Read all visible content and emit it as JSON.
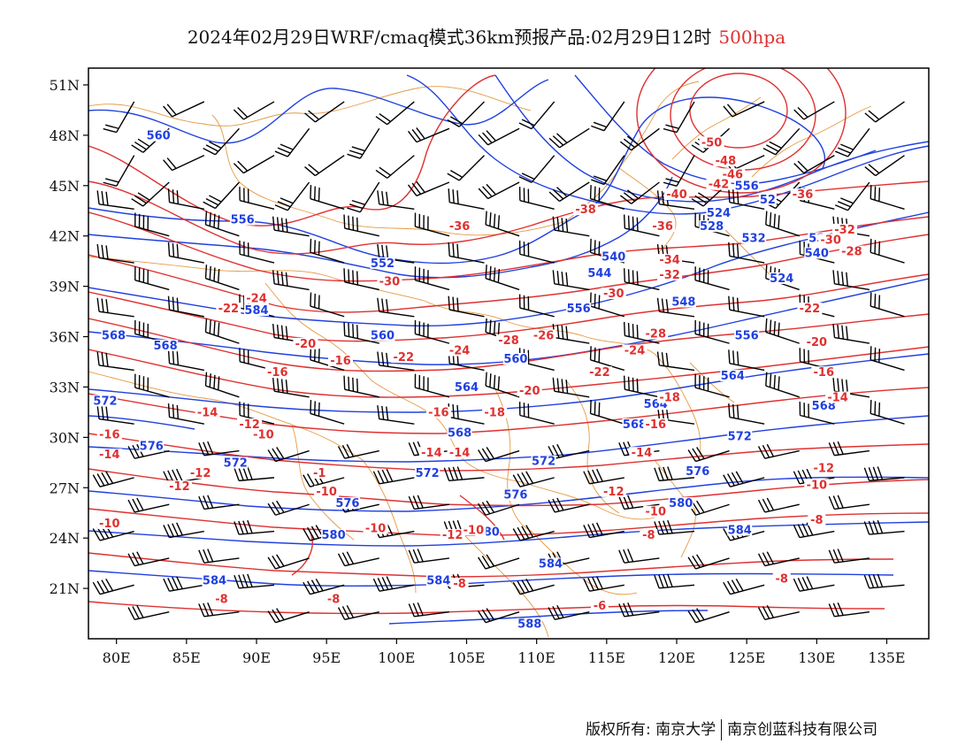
{
  "header": {
    "title": "2024年02月29日WRF/cmaq模式36km预报产品:02月29日12时",
    "level": "500hpa"
  },
  "map": {
    "lon_range": [
      78,
      138
    ],
    "lat_range": [
      18,
      52
    ],
    "lat_ticks": [
      "51N",
      "48N",
      "45N",
      "42N",
      "39N",
      "36N",
      "33N",
      "30N",
      "27N",
      "24N",
      "21N"
    ],
    "lon_ticks": [
      "80E",
      "85E",
      "90E",
      "95E",
      "100E",
      "105E",
      "110E",
      "115E",
      "120E",
      "125E",
      "130E",
      "135E"
    ],
    "geopotential_color": "#2040e0",
    "temperature_color": "#e03030",
    "boundary_color": "#e08820",
    "geopotential_labels": [
      {
        "text": "560",
        "lon": 83,
        "lat": 47.8
      },
      {
        "text": "556",
        "lon": 89,
        "lat": 42.8
      },
      {
        "text": "552",
        "lon": 99,
        "lat": 40.2
      },
      {
        "text": "556",
        "lon": 125,
        "lat": 44.8
      },
      {
        "text": "52",
        "lon": 126.5,
        "lat": 44.0
      },
      {
        "text": "524",
        "lon": 123,
        "lat": 43.2
      },
      {
        "text": "528",
        "lon": 122.5,
        "lat": 42.4
      },
      {
        "text": "532",
        "lon": 125.5,
        "lat": 41.7
      },
      {
        "text": "53",
        "lon": 130,
        "lat": 41.7
      },
      {
        "text": "540",
        "lon": 115.5,
        "lat": 40.6
      },
      {
        "text": "540",
        "lon": 130,
        "lat": 40.8
      },
      {
        "text": "544",
        "lon": 114.5,
        "lat": 39.6
      },
      {
        "text": "524",
        "lon": 127.5,
        "lat": 39.3
      },
      {
        "text": "548",
        "lon": 120.5,
        "lat": 37.9
      },
      {
        "text": "556",
        "lon": 113,
        "lat": 37.5
      },
      {
        "text": "560",
        "lon": 99,
        "lat": 35.9
      },
      {
        "text": "568",
        "lon": 79.8,
        "lat": 35.9
      },
      {
        "text": "568",
        "lon": 83.5,
        "lat": 35.3
      },
      {
        "text": "556",
        "lon": 125,
        "lat": 35.9
      },
      {
        "text": "560",
        "lon": 108.5,
        "lat": 34.5
      },
      {
        "text": "564",
        "lon": 124,
        "lat": 33.5
      },
      {
        "text": "564",
        "lon": 105,
        "lat": 32.8
      },
      {
        "text": "564",
        "lon": 118.5,
        "lat": 31.8
      },
      {
        "text": "568",
        "lon": 130.5,
        "lat": 31.7
      },
      {
        "text": "572",
        "lon": 79.2,
        "lat": 32.0
      },
      {
        "text": "568",
        "lon": 104.5,
        "lat": 30.1
      },
      {
        "text": "568",
        "lon": 117,
        "lat": 30.6
      },
      {
        "text": "572",
        "lon": 124.5,
        "lat": 29.9
      },
      {
        "text": "576",
        "lon": 82.5,
        "lat": 29.3
      },
      {
        "text": "572",
        "lon": 88.5,
        "lat": 28.3
      },
      {
        "text": "572",
        "lon": 110.5,
        "lat": 28.4
      },
      {
        "text": "576",
        "lon": 121.5,
        "lat": 27.8
      },
      {
        "text": "572",
        "lon": 102.2,
        "lat": 27.7
      },
      {
        "text": "576",
        "lon": 96.5,
        "lat": 25.9
      },
      {
        "text": "576",
        "lon": 108.5,
        "lat": 26.4
      },
      {
        "text": "580",
        "lon": 120.3,
        "lat": 25.9
      },
      {
        "text": "580",
        "lon": 95.5,
        "lat": 24.0
      },
      {
        "text": "584",
        "lon": 124.5,
        "lat": 24.3
      },
      {
        "text": "580",
        "lon": 106.5,
        "lat": 24.2
      },
      {
        "text": "584",
        "lon": 111,
        "lat": 22.3
      },
      {
        "text": "584",
        "lon": 87,
        "lat": 21.3
      },
      {
        "text": "584",
        "lon": 103,
        "lat": 21.3
      },
      {
        "text": "588",
        "lon": 109.5,
        "lat": 18.7
      },
      {
        "text": "584",
        "lon": 90,
        "lat": 37.4
      }
    ],
    "temperature_labels": [
      {
        "text": "-50",
        "lon": 122.5,
        "lat": 47.4
      },
      {
        "text": "-48",
        "lon": 123.5,
        "lat": 46.3
      },
      {
        "text": "-46",
        "lon": 124,
        "lat": 45.5
      },
      {
        "text": "-42",
        "lon": 123,
        "lat": 44.9
      },
      {
        "text": "-36",
        "lon": 129,
        "lat": 44.3
      },
      {
        "text": "-40",
        "lon": 120,
        "lat": 44.3
      },
      {
        "text": "-38",
        "lon": 113.5,
        "lat": 43.4
      },
      {
        "text": "-36",
        "lon": 104.5,
        "lat": 42.4
      },
      {
        "text": "-36",
        "lon": 119,
        "lat": 42.4
      },
      {
        "text": "-32",
        "lon": 132,
        "lat": 42.2
      },
      {
        "text": "-30",
        "lon": 131,
        "lat": 41.6
      },
      {
        "text": "-28",
        "lon": 132.5,
        "lat": 40.9
      },
      {
        "text": "-34",
        "lon": 119.5,
        "lat": 40.4
      },
      {
        "text": "-32",
        "lon": 119.5,
        "lat": 39.5
      },
      {
        "text": "-30",
        "lon": 99.5,
        "lat": 39.1
      },
      {
        "text": "-30",
        "lon": 115.5,
        "lat": 38.4
      },
      {
        "text": "-24",
        "lon": 90,
        "lat": 38.1
      },
      {
        "text": "-22",
        "lon": 88,
        "lat": 37.5
      },
      {
        "text": "-22",
        "lon": 129.5,
        "lat": 37.5
      },
      {
        "text": "-28",
        "lon": 108,
        "lat": 35.6
      },
      {
        "text": "-26",
        "lon": 110.5,
        "lat": 35.9
      },
      {
        "text": "-28",
        "lon": 118.5,
        "lat": 36.0
      },
      {
        "text": "-20",
        "lon": 93.5,
        "lat": 35.4
      },
      {
        "text": "-24",
        "lon": 104.5,
        "lat": 35.0
      },
      {
        "text": "-24",
        "lon": 117,
        "lat": 35.0
      },
      {
        "text": "-20",
        "lon": 130,
        "lat": 35.5
      },
      {
        "text": "-22",
        "lon": 100.5,
        "lat": 34.6
      },
      {
        "text": "-16",
        "lon": 96,
        "lat": 34.4
      },
      {
        "text": "-16",
        "lon": 91.5,
        "lat": 33.7
      },
      {
        "text": "-22",
        "lon": 114.5,
        "lat": 33.7
      },
      {
        "text": "-16",
        "lon": 130.5,
        "lat": 33.7
      },
      {
        "text": "-20",
        "lon": 109.5,
        "lat": 32.6
      },
      {
        "text": "-18",
        "lon": 119.5,
        "lat": 32.2
      },
      {
        "text": "-14",
        "lon": 131.5,
        "lat": 32.2
      },
      {
        "text": "-14",
        "lon": 86.5,
        "lat": 31.3
      },
      {
        "text": "-16",
        "lon": 103,
        "lat": 31.3
      },
      {
        "text": "-18",
        "lon": 107,
        "lat": 31.3
      },
      {
        "text": "-12",
        "lon": 89.5,
        "lat": 30.6
      },
      {
        "text": "-16",
        "lon": 118.5,
        "lat": 30.6
      },
      {
        "text": "-10",
        "lon": 90.5,
        "lat": 30.0
      },
      {
        "text": "-16",
        "lon": 79.5,
        "lat": 30.0
      },
      {
        "text": "-14",
        "lon": 79.5,
        "lat": 28.8
      },
      {
        "text": "-14",
        "lon": 102.5,
        "lat": 28.9
      },
      {
        "text": "-14",
        "lon": 104.5,
        "lat": 28.9
      },
      {
        "text": "-14",
        "lon": 117.5,
        "lat": 28.9
      },
      {
        "text": "-12",
        "lon": 130.5,
        "lat": 28.0
      },
      {
        "text": "-12",
        "lon": 86,
        "lat": 27.7
      },
      {
        "text": "-12",
        "lon": 84.5,
        "lat": 26.9
      },
      {
        "text": "-1",
        "lon": 94.5,
        "lat": 27.7
      },
      {
        "text": "-10",
        "lon": 95,
        "lat": 26.6
      },
      {
        "text": "-12",
        "lon": 115.5,
        "lat": 26.6
      },
      {
        "text": "-10",
        "lon": 130,
        "lat": 27.0
      },
      {
        "text": "-10",
        "lon": 79.5,
        "lat": 24.7
      },
      {
        "text": "-10",
        "lon": 118.5,
        "lat": 25.4
      },
      {
        "text": "-10",
        "lon": 98.5,
        "lat": 24.4
      },
      {
        "text": "-12",
        "lon": 104,
        "lat": 24.0
      },
      {
        "text": "-10",
        "lon": 105.5,
        "lat": 24.3
      },
      {
        "text": "-8",
        "lon": 130,
        "lat": 24.9
      },
      {
        "text": "-8",
        "lon": 118,
        "lat": 24.0
      },
      {
        "text": "-8",
        "lon": 127.5,
        "lat": 21.4
      },
      {
        "text": "-8",
        "lon": 104.5,
        "lat": 21.1
      },
      {
        "text": "-8",
        "lon": 87.5,
        "lat": 20.2
      },
      {
        "text": "-8",
        "lon": 95.5,
        "lat": 20.2
      },
      {
        "text": "-6",
        "lon": 114.5,
        "lat": 19.8
      }
    ]
  },
  "footer": {
    "copyright": "版权所有: 南京大学",
    "company": "南京创蓝科技有限公司"
  }
}
